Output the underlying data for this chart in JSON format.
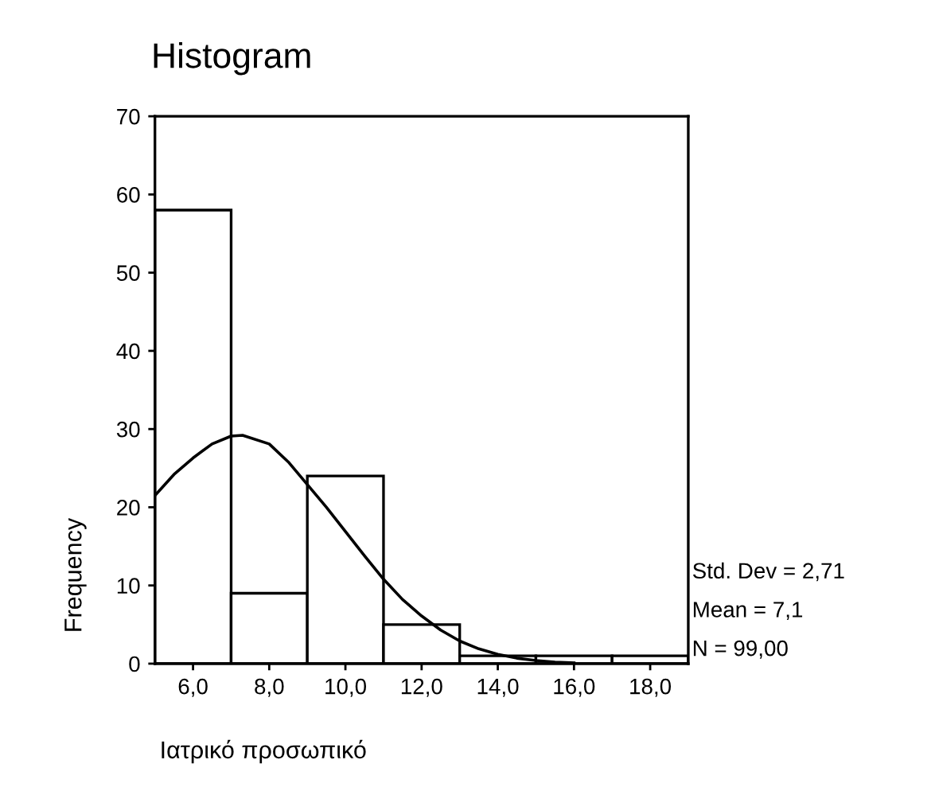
{
  "chart_data": {
    "type": "histogram",
    "title": "Histogram",
    "xlabel": "Ιατρικό προσωπικό",
    "ylabel": "Frequency",
    "bins": [
      5,
      7,
      9,
      11,
      13,
      15,
      17,
      19
    ],
    "values": [
      58,
      9,
      24,
      5,
      1,
      1,
      1
    ],
    "color": "#ffffff",
    "series": [
      {
        "type": "line",
        "color": "#000000",
        "x": [
          5,
          5.5,
          6,
          6.5,
          7,
          7.3,
          8,
          8.5,
          9,
          9.5,
          10,
          10.5,
          11,
          11.5,
          12,
          12.5,
          13,
          13.5,
          14,
          14.5,
          15,
          15.5,
          16
        ],
        "values": [
          21.5,
          24.2,
          26.3,
          28.1,
          29.1,
          29.2,
          28.1,
          25.8,
          22.9,
          20.0,
          16.9,
          13.8,
          10.8,
          8.2,
          6.1,
          4.3,
          2.9,
          1.9,
          1.2,
          0.7,
          0.4,
          0.2,
          0.1
        ]
      }
    ],
    "xlim": [
      5,
      19
    ],
    "xticks": [
      {
        "value": 6,
        "label": "6,0"
      },
      {
        "value": 8,
        "label": "8,0"
      },
      {
        "value": 10,
        "label": "10,0"
      },
      {
        "value": 12,
        "label": "12,0"
      },
      {
        "value": 14,
        "label": "14,0"
      },
      {
        "value": 16,
        "label": "16,0"
      },
      {
        "value": 18,
        "label": "18,0"
      }
    ],
    "ylim": [
      0,
      70
    ],
    "yticks": [
      0,
      10,
      20,
      30,
      40,
      50,
      60,
      70
    ],
    "grid": false,
    "annotations": [
      "Std. Dev = 2,71",
      "Mean = 7,1",
      "N = 99,00"
    ]
  }
}
